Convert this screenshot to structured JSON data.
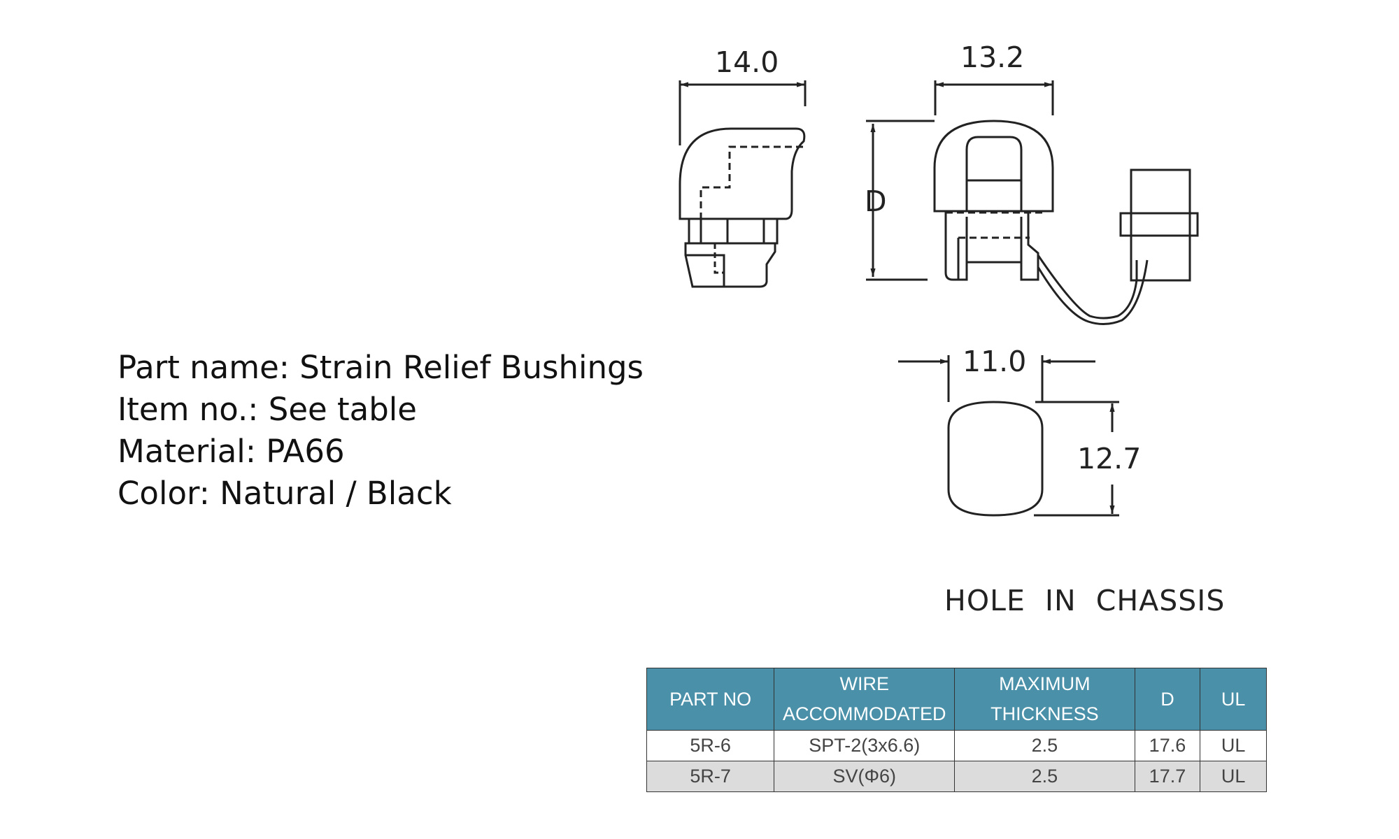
{
  "info": {
    "part_name": "Part name: Strain Relief Bushings",
    "item_no": "Item no.: See table",
    "material": "Material: PA66",
    "color": "Color: Natural / Black"
  },
  "drawing": {
    "side_width_label": "14.0",
    "front_width_label": "13.2",
    "height_label": "D",
    "hole_width_label": "11.0",
    "hole_height_label": "12.7",
    "hole_caption": "HOLE  IN  CHASSIS"
  },
  "table": {
    "headers": {
      "part_no": "PART NO",
      "wire_line1": "WIRE",
      "wire_line2": "ACCOMMODATED",
      "thickness_line1": "MAXIMUM",
      "thickness_line2": "THICKNESS",
      "d": "D",
      "ul": "UL"
    },
    "rows": [
      {
        "part_no": "5R-6",
        "wire": "SPT-2(3x6.6)",
        "thickness": "2.5",
        "d": "17.6",
        "ul": "UL"
      },
      {
        "part_no": "5R-7",
        "wire": "SV(Φ6)",
        "thickness": "2.5",
        "d": "17.7",
        "ul": "UL"
      }
    ]
  },
  "colors": {
    "header_bg": "#4a90a8",
    "alt_row_bg": "#dcdcdc",
    "line": "#222222"
  }
}
